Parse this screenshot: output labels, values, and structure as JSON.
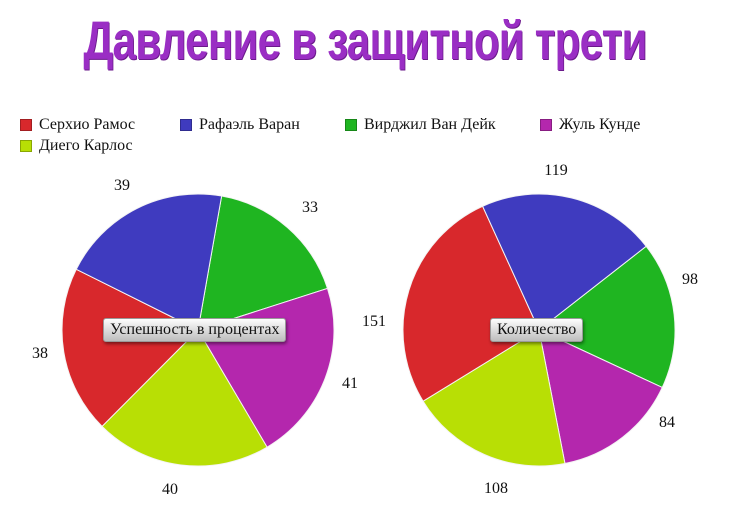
{
  "title": "Давление в защитной трети",
  "legend": [
    {
      "label": "Серхио Рамос",
      "color": "#d8282c"
    },
    {
      "label": "Рафаэль Варан",
      "color": "#3f3bbf"
    },
    {
      "label": "Вирджил Ван Дейк",
      "color": "#1fb521"
    },
    {
      "label": "Жуль Кунде",
      "color": "#b427ad"
    },
    {
      "label": "Диего Карлос",
      "color": "#b8df05"
    }
  ],
  "chart_data": [
    {
      "type": "pie",
      "title": "Успешность в процентах",
      "categories": [
        "Серхио Рамос",
        "Рафаэль Варан",
        "Вирджил Ван Дейк",
        "Жуль Кунде",
        "Диего Карлос"
      ],
      "values": [
        38,
        39,
        33,
        41,
        40
      ],
      "colors": [
        "#d8282c",
        "#3f3bbf",
        "#1fb521",
        "#b427ad",
        "#b8df05"
      ],
      "data_labels": [
        "38",
        "39",
        "33",
        "41",
        "40"
      ],
      "legend_position": "top"
    },
    {
      "type": "pie",
      "title": "Количество",
      "categories": [
        "Серхио Рамос",
        "Рафаэль Варан",
        "Вирджил Ван Дейк",
        "Жуль Кунде",
        "Диего Карлос"
      ],
      "values": [
        151,
        119,
        98,
        84,
        108
      ],
      "colors": [
        "#d8282c",
        "#3f3bbf",
        "#1fb521",
        "#b427ad",
        "#b8df05"
      ],
      "data_labels": [
        "151",
        "119",
        "98",
        "84",
        "108"
      ],
      "legend_position": "top"
    }
  ]
}
